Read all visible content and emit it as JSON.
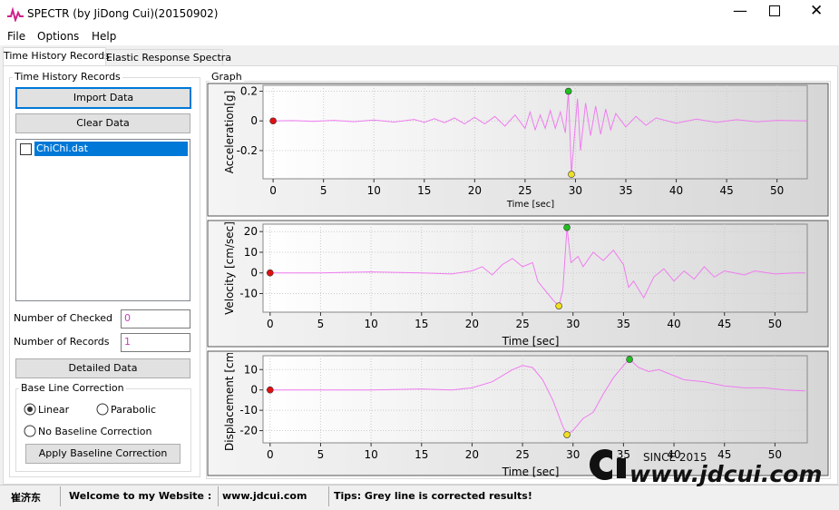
{
  "window": {
    "title": "SPECTR (by JiDong Cui)(20150902)"
  },
  "menu": [
    "File",
    "Options",
    "Help"
  ],
  "tabs": [
    "Time History Records",
    "Elastic Response Spectra"
  ],
  "records_panel": {
    "title": "Time History Records",
    "import_button": "Import Data",
    "clear_button": "Clear Data",
    "records": [
      "ChiChi.dat"
    ],
    "checked_label": "Number of Checked",
    "checked_value": "0",
    "records_label": "Number of Records",
    "records_value": "1",
    "detail_button": "Detailed Data"
  },
  "baseline": {
    "title": "Base Line Correction",
    "options": [
      "Linear",
      "Parabolic",
      "No Baseline Correction"
    ],
    "selected": 0,
    "apply_button": "Apply Baseline Correction"
  },
  "graph_title": "Graph",
  "chart_data": [
    {
      "type": "line",
      "ylabel": "Acceleration[g]",
      "xlabel": "Time [sec]",
      "grid": true,
      "xlim": [
        -1,
        53
      ],
      "xticks": [
        0,
        5,
        10,
        15,
        20,
        25,
        30,
        35,
        40,
        45,
        50
      ],
      "ylim": [
        -0.39,
        0.24
      ],
      "yticks": [
        -0.2,
        0,
        0.2
      ],
      "x": [
        0,
        2,
        4,
        6,
        8,
        10,
        12,
        14,
        15,
        16,
        17,
        18,
        19,
        20,
        21,
        22,
        23,
        24,
        25,
        25.5,
        26,
        26.5,
        27,
        27.5,
        28,
        28.5,
        29,
        29.3,
        29.6,
        29.9,
        30.2,
        30.5,
        31,
        31.5,
        32,
        32.5,
        33,
        33.5,
        34,
        35,
        36,
        37,
        38,
        40,
        42,
        44,
        46,
        48,
        50,
        53
      ],
      "series": [
        {
          "color": "#f07cf0",
          "values": [
            0,
            0.002,
            -0.003,
            0.004,
            -0.005,
            0.006,
            -0.008,
            0.01,
            -0.01,
            0.015,
            -0.012,
            0.02,
            -0.02,
            0.025,
            -0.02,
            0.03,
            -0.035,
            0.04,
            -0.05,
            0.06,
            -0.06,
            0.04,
            -0.05,
            0.07,
            -0.05,
            0.06,
            -0.08,
            0.2,
            -0.36,
            -0.1,
            0.15,
            -0.2,
            0.12,
            -0.1,
            0.1,
            -0.09,
            0.08,
            -0.06,
            0.05,
            -0.04,
            0.03,
            -0.03,
            0.02,
            -0.015,
            0.012,
            -0.01,
            0.008,
            -0.006,
            0.004,
            0
          ]
        }
      ],
      "markers": [
        {
          "x": 0,
          "y": 0,
          "color": "#e01010"
        },
        {
          "x": 29.3,
          "y": 0.2,
          "color": "#20c020"
        },
        {
          "x": 29.6,
          "y": -0.36,
          "color": "#f0e020"
        }
      ]
    },
    {
      "type": "line",
      "ylabel": "Velocity [cm/sec]",
      "xlabel": "Time [sec]",
      "grid": true,
      "xlim": [
        -0.7,
        53.2
      ],
      "xticks": [
        0,
        5,
        10,
        15,
        20,
        25,
        30,
        35,
        40,
        45,
        50
      ],
      "ylim": [
        -19,
        23.6
      ],
      "yticks": [
        -10,
        0,
        10,
        20
      ],
      "x": [
        0,
        5,
        10,
        15,
        18,
        20,
        21,
        22,
        23,
        24,
        25,
        26,
        26.5,
        27,
        27.5,
        28,
        28.6,
        29,
        29.4,
        29.8,
        30.5,
        31,
        32,
        33,
        34,
        35,
        35.5,
        36,
        37,
        38,
        39,
        40,
        41,
        42,
        43,
        44,
        45,
        47,
        48,
        50,
        52,
        53
      ],
      "series": [
        {
          "color": "#f07cf0",
          "values": [
            0,
            0,
            0.5,
            0,
            -0.5,
            1,
            3,
            -1,
            4,
            7,
            3,
            5,
            -4,
            -7,
            -10,
            -13,
            -16,
            -8,
            22,
            5,
            8,
            3,
            10,
            6,
            11,
            4,
            -7,
            -4,
            -12,
            -2,
            2,
            -4,
            1,
            -3,
            3,
            -2,
            1,
            -1,
            1,
            -0.5,
            0,
            0
          ]
        }
      ],
      "markers": [
        {
          "x": 0,
          "y": 0,
          "color": "#e01010"
        },
        {
          "x": 29.4,
          "y": 22,
          "color": "#20c020"
        },
        {
          "x": 28.6,
          "y": -16,
          "color": "#f0e020"
        }
      ]
    },
    {
      "type": "line",
      "ylabel": "Displacement [cm]",
      "xlabel": "Time [sec]",
      "grid": true,
      "xlim": [
        -0.7,
        53.2
      ],
      "xticks": [
        0,
        5,
        10,
        15,
        20,
        25,
        30,
        35,
        40,
        45,
        50
      ],
      "ylim": [
        -26,
        16.8
      ],
      "yticks": [
        -20,
        -10,
        0,
        10
      ],
      "x": [
        0,
        10,
        15,
        18,
        20,
        22,
        24,
        25,
        26,
        27,
        28,
        29,
        29.4,
        30,
        31,
        32,
        33,
        34,
        35,
        35.6,
        36.5,
        37.5,
        38.5,
        40,
        41,
        43,
        45,
        47,
        49,
        51,
        53
      ],
      "series": [
        {
          "color": "#f07cf0",
          "values": [
            0,
            0,
            0.5,
            0,
            1,
            4,
            10,
            12,
            11,
            5,
            -5,
            -18,
            -22,
            -20,
            -14,
            -11,
            -2,
            6,
            12,
            15,
            11,
            9,
            10,
            7,
            5,
            4,
            2,
            1,
            1,
            0,
            -0.5
          ]
        }
      ],
      "markers": [
        {
          "x": 0,
          "y": 0,
          "color": "#e01010"
        },
        {
          "x": 35.6,
          "y": 15,
          "color": "#20c020"
        },
        {
          "x": 29.4,
          "y": -22,
          "color": "#f0e020"
        }
      ]
    }
  ],
  "watermark": {
    "since": "SINCE 2015",
    "site": "www.jdcui.com"
  },
  "status_bar": [
    "崔济东",
    "Welcome to my Website :",
    "www.jdcui.com",
    "Tips: Grey line is corrected results!"
  ]
}
